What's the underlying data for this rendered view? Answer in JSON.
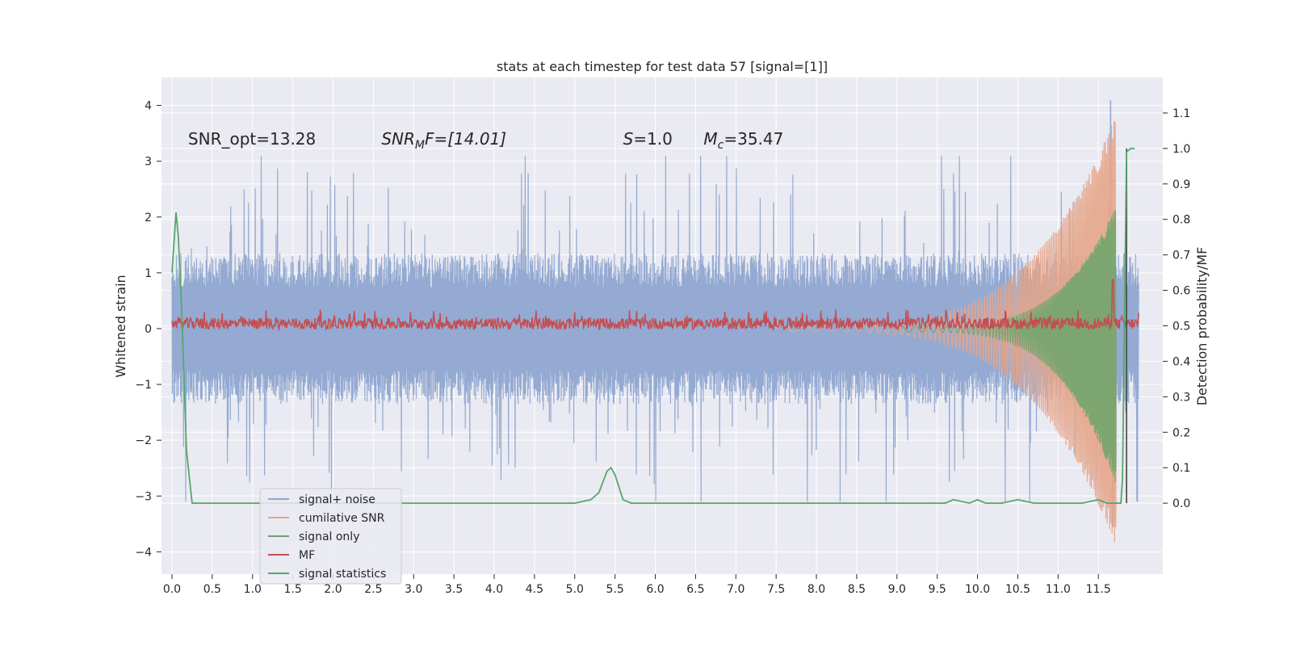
{
  "chart_data": {
    "type": "line",
    "title": "stats at each timestep for test data 57 [signal=[1]]",
    "ylabel_left": "Whitened strain",
    "ylabel_right": "Detection probability/MF",
    "xlabel": "",
    "xlim": [
      -0.13,
      12.3
    ],
    "ylim_left": [
      -4.4,
      4.5
    ],
    "ylim_right": [
      -0.2,
      1.2
    ],
    "x_ticks": [
      "0.0",
      "0.5",
      "1.0",
      "1.5",
      "2.0",
      "2.5",
      "3.0",
      "3.5",
      "4.0",
      "4.5",
      "5.0",
      "5.5",
      "6.0",
      "6.5",
      "7.0",
      "7.5",
      "8.0",
      "8.5",
      "9.0",
      "9.5",
      "10.0",
      "10.5",
      "11.0",
      "11.5"
    ],
    "y_ticks_left": [
      "−4",
      "−3",
      "−2",
      "−1",
      "0",
      "1",
      "2",
      "3",
      "4"
    ],
    "y_ticks_right": [
      "0.0",
      "0.1",
      "0.2",
      "0.3",
      "0.4",
      "0.5",
      "0.6",
      "0.7",
      "0.8",
      "0.9",
      "1.0",
      "1.1"
    ],
    "grid": true,
    "legend_position": "lower-left",
    "annotations": [
      {
        "text": "SNR_opt=13.28",
        "x": 0.2,
        "y": 3.3
      },
      {
        "text": "SNR_MF=[14.01]",
        "x": 2.6,
        "y": 3.3
      },
      {
        "text": "S=1.0",
        "x": 5.6,
        "y": 3.3
      },
      {
        "text": "M_c=35.47",
        "x": 6.6,
        "y": 3.3
      }
    ],
    "series": [
      {
        "name": "signal+ noise",
        "color": "#8fa6d0",
        "axis": "left",
        "envelope": {
          "x_start": 0.0,
          "x_end": 12.0,
          "typical_abs": 1.35,
          "peak_max": 4.08,
          "peak_min": -3.55
        }
      },
      {
        "name": "cumilative SNR",
        "color": "#e6a58a",
        "axis": "left",
        "chirp": {
          "x_start": 7.5,
          "x_end": 11.72,
          "peak_max": 3.85,
          "peak_min": -3.9
        }
      },
      {
        "name": "signal only",
        "color": "#6ba56b",
        "axis": "left",
        "chirp": {
          "x_start": 9.0,
          "x_end": 11.72,
          "peak_max": 2.2,
          "peak_min": -2.8
        }
      },
      {
        "name": "MF",
        "color": "#c44e52",
        "axis": "right",
        "baseline": 0.5,
        "noise_band": [
          0.49,
          0.53
        ],
        "spike": {
          "x": 11.68,
          "y": 0.63
        }
      },
      {
        "name": "signal statistics",
        "color": "#55a868",
        "axis": "right",
        "x": [
          0.0,
          0.05,
          0.08,
          0.12,
          0.18,
          0.25,
          0.5,
          1.0,
          2.0,
          3.0,
          3.5,
          4.0,
          4.5,
          5.0,
          5.2,
          5.3,
          5.4,
          5.45,
          5.5,
          5.6,
          5.7,
          6.0,
          7.0,
          8.0,
          9.0,
          9.6,
          9.7,
          9.9,
          10.0,
          10.1,
          10.3,
          10.5,
          10.7,
          11.0,
          11.2,
          11.3,
          11.5,
          11.6,
          11.7,
          11.78,
          11.8,
          11.85,
          11.9,
          11.95
        ],
        "y": [
          0.65,
          0.82,
          0.75,
          0.55,
          0.15,
          0.0,
          0.0,
          0.0,
          0.0,
          0.0,
          0.0,
          0.0,
          0.0,
          0.0,
          0.01,
          0.03,
          0.09,
          0.1,
          0.08,
          0.01,
          0.0,
          0.0,
          0.0,
          0.0,
          0.0,
          0.0,
          0.01,
          0.0,
          0.01,
          0.0,
          0.0,
          0.01,
          0.0,
          0.0,
          0.0,
          0.0,
          0.01,
          0.0,
          0.0,
          0.0,
          0.07,
          0.99,
          1.0,
          1.0
        ]
      }
    ],
    "vline": {
      "x": 11.85,
      "color": "#444444"
    }
  }
}
